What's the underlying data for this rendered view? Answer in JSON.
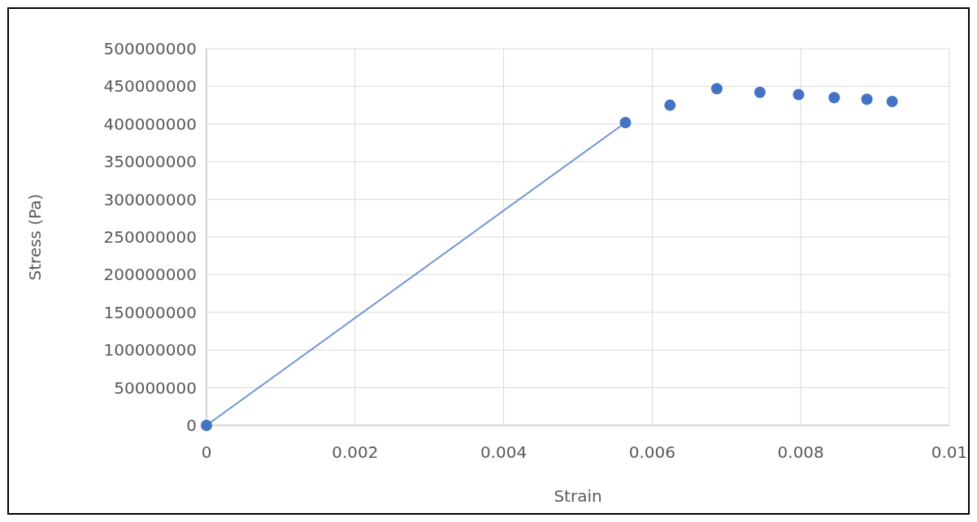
{
  "chart_data": {
    "type": "scatter",
    "xlabel": "Strain",
    "ylabel": "Stress (Pa)",
    "xlim": [
      0,
      0.01
    ],
    "xticks": [
      0,
      0.002,
      0.004,
      0.006,
      0.008,
      0.01
    ],
    "ylim": [
      0,
      500000000
    ],
    "yticks": [
      0,
      50000000,
      100000000,
      150000000,
      200000000,
      250000000,
      300000000,
      350000000,
      400000000,
      450000000,
      500000000
    ],
    "grid": true,
    "marker": "circle",
    "line_style": "solid",
    "series": [
      {
        "type": "line",
        "color": "#4472c4",
        "x": [
          0,
          0.00564
        ],
        "values": [
          0,
          402000000
        ]
      },
      {
        "color": "#4472c4",
        "x": [
          0.00624,
          0.00687,
          0.00745,
          0.00797,
          0.00845,
          0.00889,
          0.00923
        ],
        "values": [
          425000000,
          447000000,
          442000000,
          439000000,
          435000000,
          433000000,
          430000000
        ]
      }
    ]
  }
}
